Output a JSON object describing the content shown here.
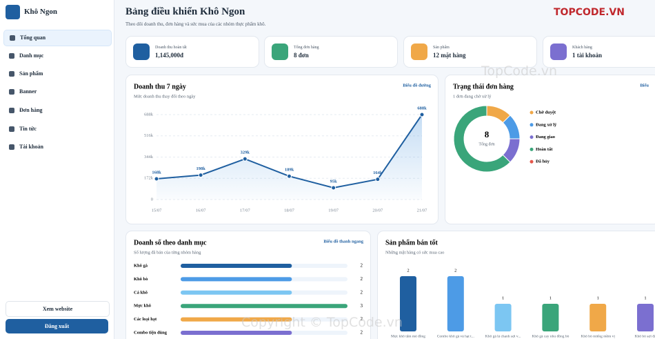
{
  "sidebar": {
    "brand": "Khô Ngon",
    "nav": [
      "Tổng quan",
      "Danh mục",
      "Sản phẩm",
      "Banner",
      "Đơn hàng",
      "Tin tức",
      "Tài khoản"
    ],
    "buttons": [
      "Xem website",
      "Đăng xuất"
    ]
  },
  "header": {
    "title": "Bảng điều khiển Khô Ngon",
    "subtitle": "Theo dõi doanh thu, đơn hàng và sức mua của các nhóm thực phẩm khô.",
    "logo": "TOPCODE.VN"
  },
  "stats": [
    {
      "label": "Doanh thu hoàn tất",
      "value": "1,145,000đ"
    },
    {
      "label": "Tổng đơn hàng",
      "value": "8 đơn"
    },
    {
      "label": "Sản phẩm",
      "value": "12 mặt hàng"
    },
    {
      "label": "Khách hàng",
      "value": "1 tài khoản"
    }
  ],
  "watermarks": [
    "TopCode.vn",
    "Copyright © TopCode.vn"
  ],
  "chart_data": [
    {
      "type": "line",
      "title": "Doanh thu 7 ngày",
      "subtitle": "Mức doanh thu thay đổi theo ngày",
      "link": "Biểu đồ đường",
      "categories": [
        "15/07",
        "16/07",
        "17/07",
        "18/07",
        "19/07",
        "20/07",
        "21/07"
      ],
      "values": [
        168000,
        198000,
        329000,
        189000,
        95000,
        164000,
        688000
      ],
      "value_labels": [
        "168k",
        "198k",
        "329k",
        "189k",
        "95k",
        "164k",
        "688k"
      ],
      "color": "#1f5fa0",
      "ylim": [
        0,
        688000
      ],
      "yticks": [
        0,
        {
          "value": 172000,
          "label": "172k"
        },
        {
          "value": 344000,
          "label": "344k"
        },
        {
          "value": 516000,
          "label": "516k"
        },
        {
          "value": 688000,
          "label": "688k"
        }
      ],
      "grid": true
    },
    {
      "type": "pie",
      "title": "Trạng thái đơn hàng",
      "subtitle": "1 đơn đang chờ xử lý",
      "link": "Biểu",
      "categories": [
        "Chờ duyệt",
        "Đang xử lý",
        "Đang giao",
        "Hoàn tất",
        "Đã hủy"
      ],
      "values": [
        1,
        1,
        1,
        5,
        0
      ],
      "colors": [
        "#f0a848",
        "#4d9be6",
        "#7b6fd0",
        "#3aa57a",
        "#e5574b"
      ],
      "center_value": 8,
      "center_label": "Tổng đơn"
    },
    {
      "type": "hbar",
      "title": "Doanh số theo danh mục",
      "subtitle": "Số lượng đã bán của từng nhóm hàng",
      "link": "Biểu đồ thanh ngang",
      "categories": [
        "Khô gà",
        "Khô bò",
        "Cá khô",
        "Mực khô",
        "Các loại hạt",
        "Combo tiện dùng"
      ],
      "values": [
        2,
        2,
        2,
        3,
        2,
        2
      ],
      "colors": [
        "#1f5fa0",
        "#4d9be6",
        "#7cc6f2",
        "#3aa57a",
        "#f0a848",
        "#7b6fd0"
      ],
      "xlim": [
        0,
        3
      ]
    },
    {
      "type": "bar",
      "title": "Sản phẩm bán tốt",
      "subtitle": "Những mặt hàng có sức mua cao",
      "categories": [
        "Mực khô tẩm mè đồng",
        "Combo khô gà và hạt t...",
        "Khô gà lá chanh sợi v...",
        "Khô gà cay nhu đồng bò",
        "Khô bò miếng mềm vị",
        "Khô bò sợi đậ"
      ],
      "values": [
        2,
        2,
        1,
        1,
        1,
        1
      ],
      "colors": [
        "#1f5fa0",
        "#4d9be6",
        "#7cc6f2",
        "#3aa57a",
        "#f0a848",
        "#7b6fd0"
      ],
      "ylim": [
        0,
        2
      ]
    }
  ]
}
